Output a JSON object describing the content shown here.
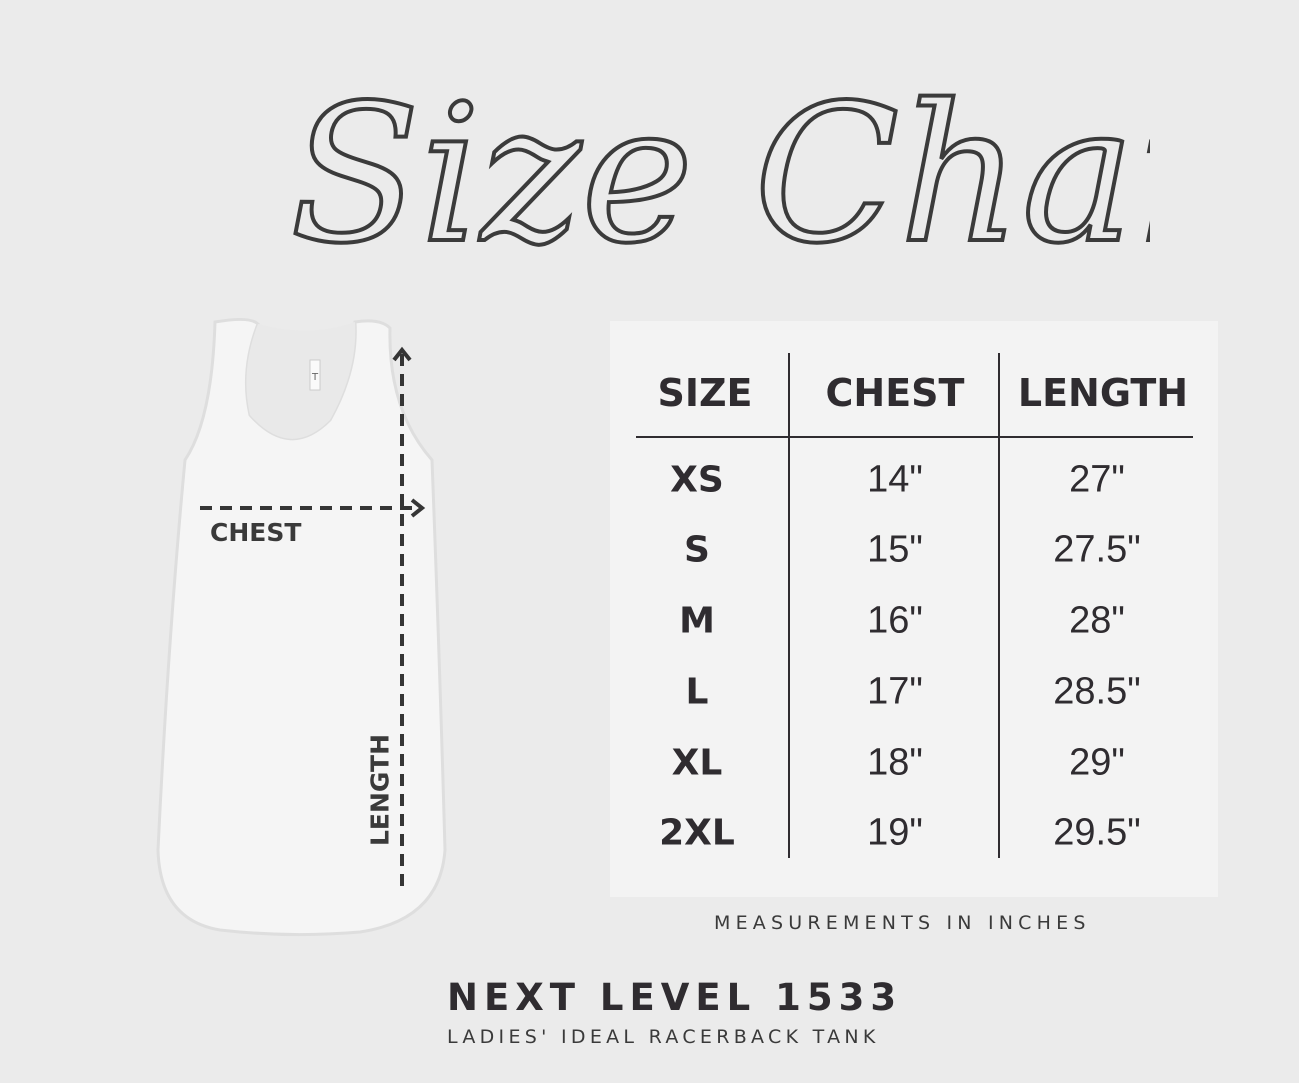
{
  "title": "Size Chart",
  "garment_labels": {
    "chest": "CHEST",
    "length": "LENGTH"
  },
  "table": {
    "headers": [
      "SIZE",
      "CHEST",
      "LENGTH"
    ],
    "rows": [
      {
        "size": "XS",
        "chest": "14\"",
        "length": "27\""
      },
      {
        "size": "S",
        "chest": "15\"",
        "length": "27.5\""
      },
      {
        "size": "M",
        "chest": "16\"",
        "length": "28\""
      },
      {
        "size": "L",
        "chest": "17\"",
        "length": "28.5\""
      },
      {
        "size": "XL",
        "chest": "18\"",
        "length": "29\""
      },
      {
        "size": "2XL",
        "chest": "19\"",
        "length": "29.5\""
      }
    ]
  },
  "note": "MEASUREMENTS IN INCHES",
  "product": {
    "name": "NEXT LEVEL 1533",
    "description": "LADIES' IDEAL RACERBACK TANK"
  },
  "colors": {
    "background": "#ebebeb",
    "panel": "#f3f3f3",
    "text": "#2f2c30"
  }
}
